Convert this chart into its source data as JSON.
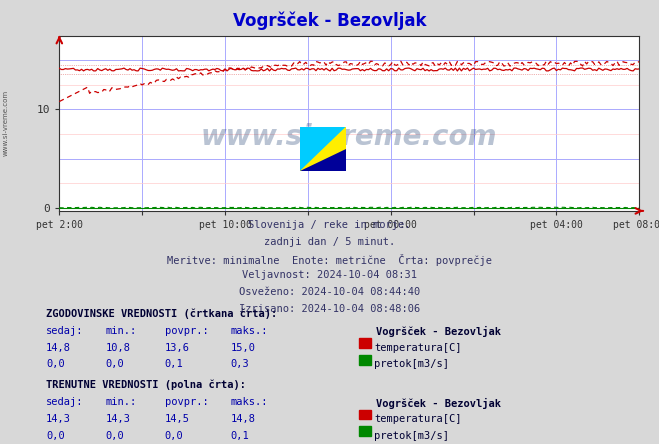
{
  "title": "Vogršček - Bezovljak",
  "title_color": "#0000cc",
  "bg_color": "#d8d8d8",
  "plot_bg_color": "#ffffff",
  "grid_color_major": "#aaaaff",
  "grid_color_minor": "#ffcccc",
  "temp_color": "#cc0000",
  "flow_color": "#008800",
  "watermark_text": "www.si-vreme.com",
  "watermark_color": "#1a3a6e",
  "watermark_alpha": 0.3,
  "subtitle_lines": [
    "Slovenija / reke in morje.",
    "zadnji dan / 5 minut.",
    "Meritve: minimalne  Enote: metrične  Črta: povprečje",
    "Veljavnost: 2024-10-04 08:31",
    "Osveženo: 2024-10-04 08:44:40",
    "Izrisano: 2024-10-04 08:48:06"
  ],
  "table_hist_label": "ZGODOVINSKE VREDNOSTI (črtkana črta):",
  "table_curr_label": "TRENUTNE VREDNOSTI (polna črta):",
  "table_headers": [
    "sedaj:",
    "min.:",
    "povpr.:",
    "maks.:"
  ],
  "hist_row1": [
    "14,8",
    "10,8",
    "13,6",
    "15,0"
  ],
  "hist_row2": [
    "0,0",
    "0,0",
    "0,1",
    "0,3"
  ],
  "curr_row1": [
    "14,3",
    "14,3",
    "14,5",
    "14,8"
  ],
  "curr_row2": [
    "0,0",
    "0,0",
    "0,0",
    "0,1"
  ],
  "station_label": "Vogršček - Bezovljak",
  "temp_label": "temperatura[C]",
  "flow_label": "pretok[m3/s]",
  "left_label": "www.si-vreme.com",
  "n_points": 288,
  "y_max": 17.5,
  "temp_hist_avg": 13.6,
  "temp_curr_avg": 14.5,
  "temp_hist_min": 10.8,
  "temp_hist_max": 15.0,
  "temp_curr_min": 14.3,
  "temp_curr_max": 14.8
}
